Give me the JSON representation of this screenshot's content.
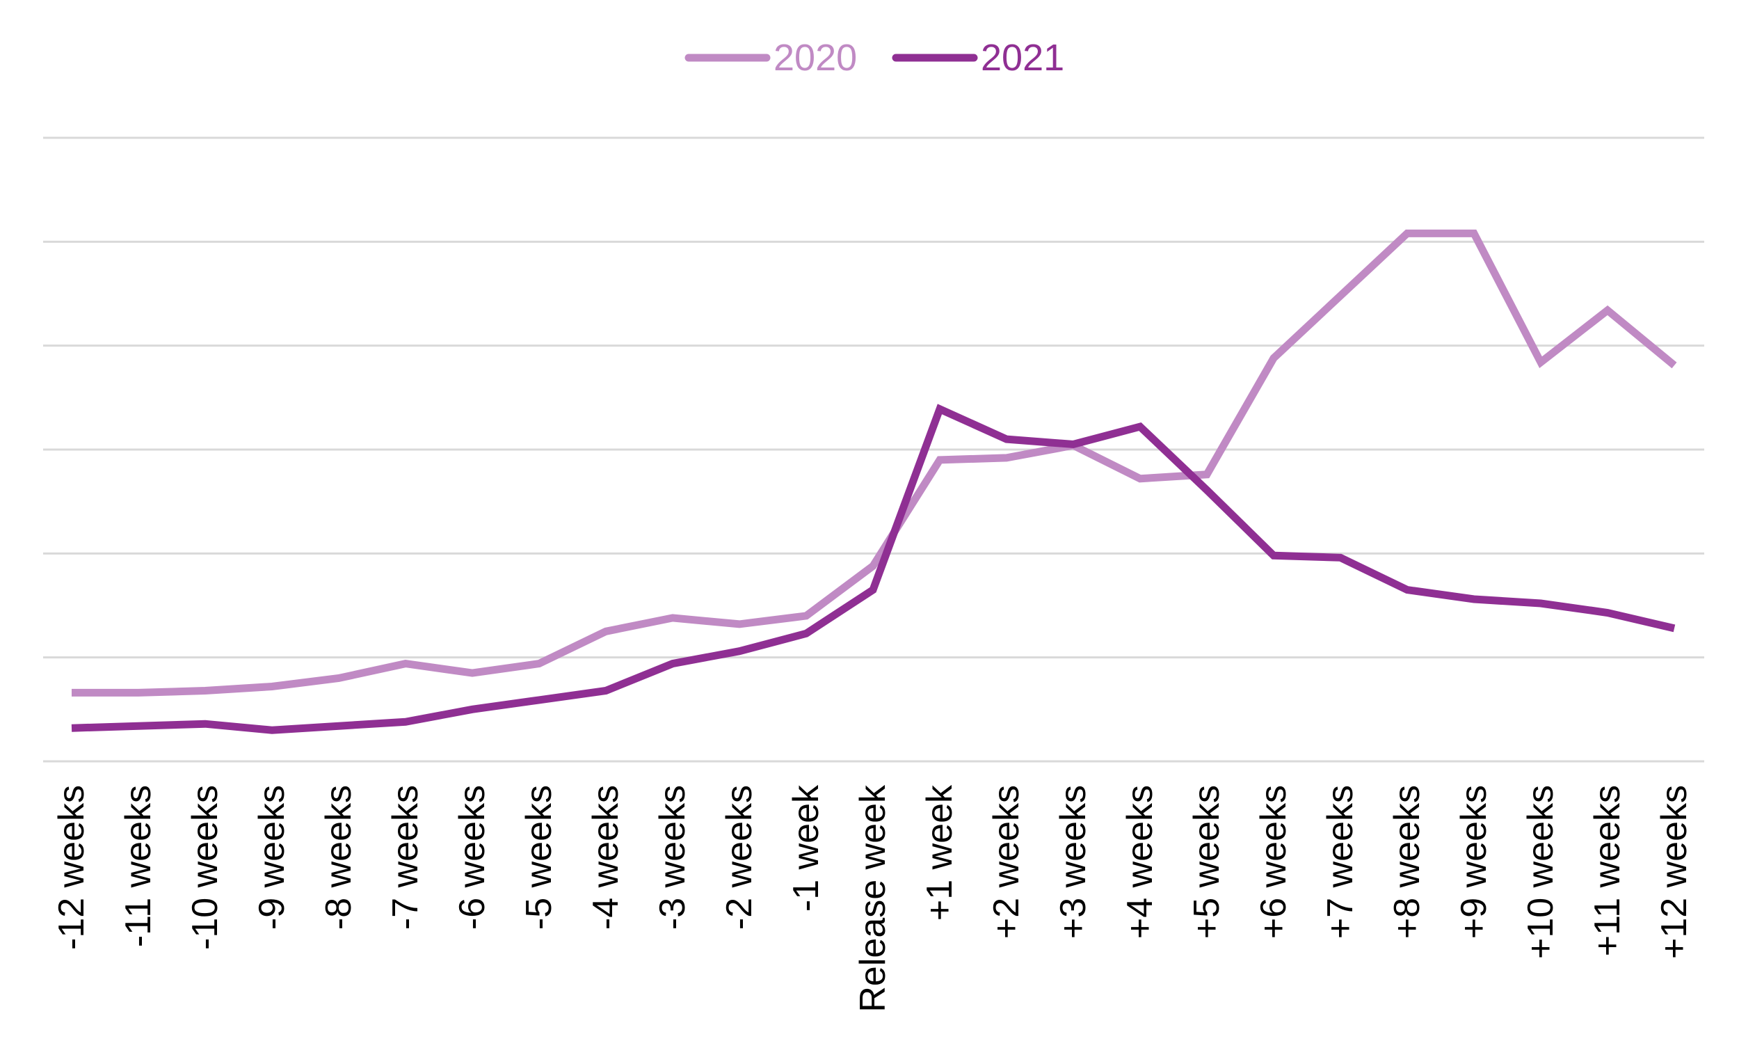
{
  "chart_data": {
    "type": "line",
    "title": "",
    "xlabel": "",
    "ylabel": "",
    "ylim": [
      0,
      6
    ],
    "y_gridlines": [
      0,
      1,
      2,
      3,
      4,
      5,
      6
    ],
    "y_tick_labels_visible": false,
    "grid": true,
    "legend": "top-center",
    "categories": [
      "-12 weeks",
      "-11 weeks",
      "-10 weeks",
      "-9 weeks",
      "-8 weeks",
      "-7 weeks",
      "-6 weeks",
      "-5 weeks",
      "-4 weeks",
      "-3 weeks",
      "-2 weeks",
      "-1 week",
      "Release week",
      "+1 week",
      "+2 weeks",
      "+3 weeks",
      "+4 weeks",
      "+5 weeks",
      "+6 weeks",
      "+7 weeks",
      "+8 weeks",
      "+9 weeks",
      "+10 weeks",
      "+11 weeks",
      "+12 weeks"
    ],
    "series": [
      {
        "name": "2020",
        "color": "#c08ac4",
        "values": [
          0.66,
          0.66,
          0.68,
          0.72,
          0.8,
          0.94,
          0.85,
          0.94,
          1.25,
          1.38,
          1.32,
          1.4,
          1.88,
          2.9,
          2.92,
          3.04,
          2.72,
          2.76,
          3.88,
          4.48,
          5.08,
          5.08,
          3.84,
          4.34,
          3.81
        ]
      },
      {
        "name": "2021",
        "color": "#8f2f93",
        "values": [
          0.32,
          0.34,
          0.36,
          0.3,
          0.34,
          0.38,
          0.5,
          0.59,
          0.68,
          0.94,
          1.06,
          1.23,
          1.65,
          3.39,
          3.1,
          3.05,
          3.22,
          2.61,
          1.98,
          1.96,
          1.65,
          1.56,
          1.52,
          1.43,
          1.28
        ]
      }
    ]
  }
}
